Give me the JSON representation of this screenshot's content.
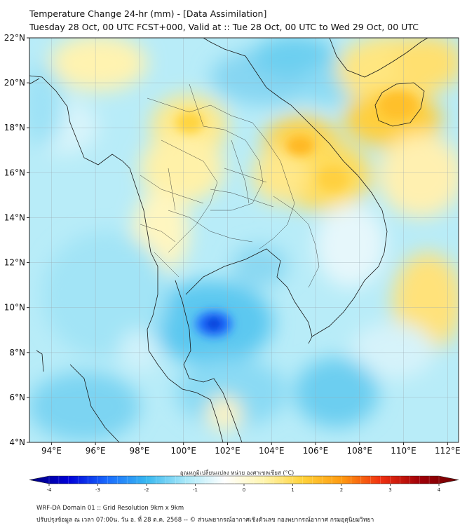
{
  "title": {
    "line1": "Temperature Change 24-hr (mm) - [Data Assimilation]",
    "line2": "Tuesday 28 Oct, 00 UTC FCST+000, Valid at :: Tue 28 Oct, 00 UTC to Wed 29 Oct, 00 UTC"
  },
  "map": {
    "lat_range": [
      4,
      22
    ],
    "lon_range": [
      93,
      112.5
    ],
    "lat_ticks": [
      "22°N",
      "20°N",
      "18°N",
      "16°N",
      "14°N",
      "12°N",
      "10°N",
      "8°N",
      "6°N",
      "4°N"
    ],
    "lon_ticks": [
      "94°E",
      "96°E",
      "98°E",
      "100°E",
      "102°E",
      "104°E",
      "106°E",
      "108°E",
      "110°E",
      "112°E"
    ],
    "grid": true
  },
  "colorbar": {
    "label": "อุณหภูมิเปลี่ยนแปลง หน่วย องศาเซลเซียส (°C)",
    "range": [
      -4,
      4
    ],
    "ticks": [
      "-4",
      "-3",
      "-2",
      "-1",
      "0",
      "1",
      "2",
      "3",
      "4"
    ],
    "colors": [
      "#00007a",
      "#0000d8",
      "#1a6cff",
      "#38b8f0",
      "#a8e8f8",
      "#ffffff",
      "#fff5b0",
      "#ffd23a",
      "#ff9a10",
      "#f03010",
      "#a00008",
      "#700000"
    ]
  },
  "footer": {
    "line1": "WRF-DA Domain 01 :: Grid Resolution 9km x 9km",
    "line2": "ปรับปรุงข้อมูล ณ เวลา 07:00น. วัน อ. ที่ 28 ต.ค. 2568 -- © ส่วนพยากรณ์อากาศเชิงตัวเลข กองพยากรณ์อากาศ กรมอุตุนิยมวิทยา"
  }
}
